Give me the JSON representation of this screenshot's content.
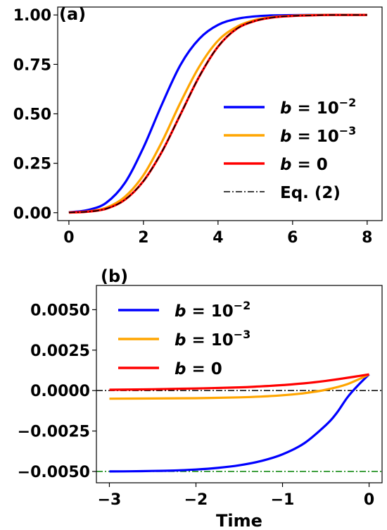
{
  "chart_data": [
    {
      "type": "line",
      "panel_label": "(a)",
      "xlim": [
        -0.3,
        8.4
      ],
      "ylim": [
        -0.04,
        1.04
      ],
      "xticks": [
        0,
        2,
        4,
        6,
        8
      ],
      "xtick_labels": [
        "0",
        "2",
        "4",
        "6",
        "8"
      ],
      "yticks": [
        0.0,
        0.25,
        0.5,
        0.75,
        1.0
      ],
      "ytick_labels": [
        "0.00",
        "0.25",
        "0.50",
        "0.75",
        "1.00"
      ],
      "xlabel": "",
      "legend": "center-right",
      "series": [
        {
          "name": "b = 10^-2",
          "label_base": "b = 10",
          "label_exp": "−2",
          "color": "#0000ff",
          "style": "solid",
          "x": [
            0,
            0.5,
            1,
            1.5,
            2,
            2.5,
            3,
            3.5,
            4,
            4.5,
            5,
            5.5,
            6,
            6.5,
            7,
            7.5,
            8
          ],
          "y": [
            0.002,
            0.013,
            0.05,
            0.15,
            0.33,
            0.55,
            0.75,
            0.88,
            0.95,
            0.98,
            0.993,
            0.998,
            0.999,
            1.0,
            1.0,
            1.0,
            1.0
          ]
        },
        {
          "name": "b = 10^-3",
          "label_base": "b = 10",
          "label_exp": "−3",
          "color": "#ffa500",
          "style": "solid",
          "x": [
            0,
            0.5,
            1,
            1.5,
            2,
            2.5,
            3,
            3.5,
            4,
            4.5,
            5,
            5.5,
            6,
            6.5,
            7,
            7.5,
            8
          ],
          "y": [
            0.001,
            0.006,
            0.025,
            0.08,
            0.19,
            0.36,
            0.56,
            0.74,
            0.87,
            0.94,
            0.975,
            0.99,
            0.996,
            0.999,
            1.0,
            1.0,
            1.0
          ]
        },
        {
          "name": "b = 0",
          "label_base": "b = 0",
          "label_exp": "",
          "color": "#ff0000",
          "style": "solid",
          "x": [
            0,
            0.5,
            1,
            1.5,
            2,
            2.5,
            3,
            3.5,
            4,
            4.5,
            5,
            5.5,
            6,
            6.5,
            7,
            7.5,
            8
          ],
          "y": [
            0.001,
            0.005,
            0.02,
            0.065,
            0.16,
            0.31,
            0.5,
            0.69,
            0.84,
            0.93,
            0.97,
            0.988,
            0.995,
            0.998,
            1.0,
            1.0,
            1.0
          ]
        },
        {
          "name": "Eq. (2)",
          "label_base": "Eq. (2)",
          "label_exp": "",
          "color": "#000000",
          "style": "dashdot",
          "x": [
            0,
            0.5,
            1,
            1.5,
            2,
            2.5,
            3,
            3.5,
            4,
            4.5,
            5,
            5.5,
            6,
            6.5,
            7,
            7.5,
            8
          ],
          "y": [
            0.001,
            0.005,
            0.02,
            0.065,
            0.16,
            0.31,
            0.5,
            0.69,
            0.84,
            0.93,
            0.97,
            0.988,
            0.995,
            0.998,
            1.0,
            1.0,
            1.0
          ]
        }
      ]
    },
    {
      "type": "line",
      "panel_label": "(b)",
      "xlim": [
        -3.15,
        0.15
      ],
      "ylim": [
        -0.0057,
        0.0065
      ],
      "xticks": [
        -3,
        -2,
        -1,
        0
      ],
      "xtick_labels": [
        "−3",
        "−2",
        "−1",
        "0"
      ],
      "yticks": [
        -0.005,
        -0.0025,
        0.0,
        0.0025,
        0.005
      ],
      "ytick_labels": [
        "−0.0050",
        "−0.0025",
        "0.0000",
        "0.0025",
        "0.0050"
      ],
      "xlabel": "Time",
      "legend": "top-left",
      "reference_lines": [
        {
          "y": 0.0,
          "color": "#000000",
          "style": "dashdot"
        },
        {
          "y": -0.005,
          "color": "#008000",
          "style": "dashdot"
        }
      ],
      "series": [
        {
          "name": "b = 10^-2",
          "label_base": "b = 10",
          "label_exp": "−2",
          "color": "#0000ff",
          "style": "solid",
          "x": [
            -3,
            -2.75,
            -2.5,
            -2.25,
            -2,
            -1.75,
            -1.5,
            -1.25,
            -1,
            -0.75,
            -0.5,
            -0.375,
            -0.25,
            -0.125,
            0
          ],
          "y": [
            -0.005,
            -0.00499,
            -0.00497,
            -0.00494,
            -0.00488,
            -0.00478,
            -0.00462,
            -0.00436,
            -0.00394,
            -0.00326,
            -0.00214,
            -0.00139,
            -0.00042,
            0.00034,
            0.001
          ]
        },
        {
          "name": "b = 10^-3",
          "label_base": "b = 10",
          "label_exp": "−3",
          "color": "#ffa500",
          "style": "solid",
          "x": [
            -3,
            -2.5,
            -2,
            -1.5,
            -1.25,
            -1,
            -0.75,
            -0.5,
            -0.25,
            0
          ],
          "y": [
            -0.0005,
            -0.00049,
            -0.00047,
            -0.00042,
            -0.00037,
            -0.00029,
            -0.00016,
            5e-05,
            0.0004,
            0.001
          ]
        },
        {
          "name": "b = 0",
          "label_base": "b = 0",
          "label_exp": "",
          "color": "#ff0000",
          "style": "solid",
          "x": [
            -3,
            -2.5,
            -2,
            -1.5,
            -1.25,
            -1,
            -0.75,
            -0.5,
            -0.25,
            0
          ],
          "y": [
            5e-05,
            8e-05,
            0.00013,
            0.0002,
            0.00026,
            0.00034,
            0.00045,
            0.0006,
            0.00079,
            0.001
          ]
        }
      ]
    }
  ]
}
